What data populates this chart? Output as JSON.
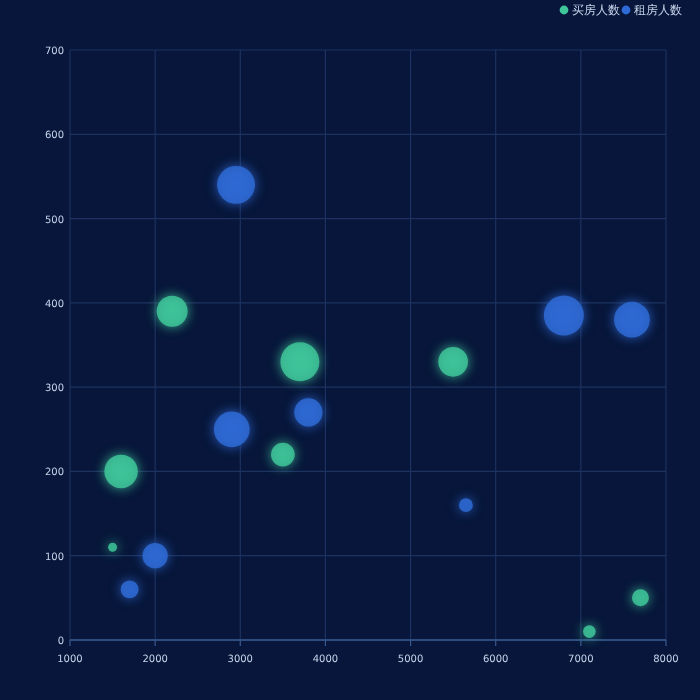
{
  "chart_data": {
    "type": "bubble",
    "xlim": [
      1000,
      8000
    ],
    "xticks": [
      1000,
      2000,
      3000,
      4000,
      5000,
      6000,
      7000,
      8000
    ],
    "ylim": [
      0,
      700
    ],
    "yticks": [
      0,
      100,
      200,
      300,
      400,
      500,
      600,
      700
    ],
    "grid": true,
    "legend": "top right",
    "marker": "circle",
    "series": [
      {
        "name": "买房人数",
        "color": "#3fc79a",
        "x": [
          2200,
          3700,
          5500,
          1600,
          3500,
          1500,
          7100,
          7700
        ],
        "values": [
          390,
          330,
          330,
          200,
          220,
          110,
          10,
          50
        ],
        "sizes": [
          0.6,
          0.95,
          0.55,
          0.7,
          0.35,
          0.05,
          0.1,
          0.18
        ]
      },
      {
        "name": "租房人数",
        "color": "#2f6bd6",
        "x": [
          2950,
          6800,
          7600,
          2900,
          3800,
          2000,
          1700,
          5650
        ],
        "values": [
          540,
          385,
          380,
          250,
          270,
          100,
          60,
          160
        ],
        "sizes": [
          0.9,
          1,
          0.8,
          0.8,
          0.5,
          0.4,
          0.2,
          0.12
        ]
      }
    ]
  }
}
